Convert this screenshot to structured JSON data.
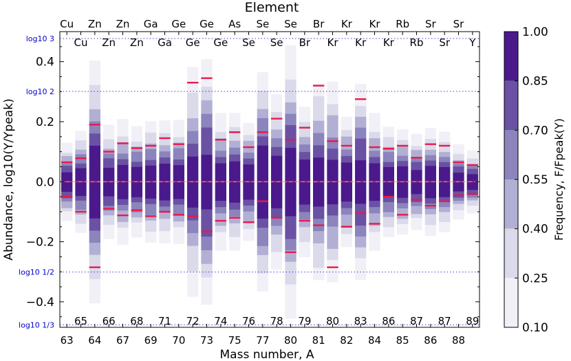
{
  "chart_data": {
    "type": "heatmap",
    "title": "Element",
    "xlabel": "Mass number, A",
    "ylabel": "Abundance, log10(Y/Ypeak)",
    "ylim": [
      -0.485,
      0.5
    ],
    "y_ticks": [
      0.4,
      0.2,
      0.0,
      -0.2,
      -0.4
    ],
    "y_tick_labels": [
      "0.4",
      "0.2",
      "0.0",
      "−0.2",
      "−0.4"
    ],
    "reference_lines": [
      {
        "label": "log10 3",
        "value": 0.477
      },
      {
        "label": "log10 2",
        "value": 0.301
      },
      {
        "label": "log10 1/2",
        "value": -0.301
      },
      {
        "label": "log10 1/3",
        "value": -0.477
      }
    ],
    "columns": [
      {
        "mass": "63",
        "element": "Cu",
        "row": "lower",
        "hi": 0.065,
        "lo": -0.05,
        "spread": 0.065
      },
      {
        "mass": "65",
        "element": "Cu",
        "row": "upper",
        "hi": 0.078,
        "lo": -0.1,
        "spread": 0.085
      },
      {
        "mass": "64",
        "element": "Zn",
        "row": "lower",
        "hi": 0.19,
        "lo": -0.285,
        "spread": 0.2
      },
      {
        "mass": "66",
        "element": "Zn",
        "row": "upper",
        "hi": 0.1,
        "lo": -0.09,
        "spread": 0.09
      },
      {
        "mass": "67",
        "element": "Zn",
        "row": "lower",
        "hi": 0.128,
        "lo": -0.112,
        "spread": 0.1
      },
      {
        "mass": "68",
        "element": "Zn",
        "row": "upper",
        "hi": 0.112,
        "lo": -0.095,
        "spread": 0.09
      },
      {
        "mass": "69",
        "element": "Ga",
        "row": "lower",
        "hi": 0.12,
        "lo": -0.115,
        "spread": 0.1
      },
      {
        "mass": "71",
        "element": "Ga",
        "row": "upper",
        "hi": 0.145,
        "lo": -0.1,
        "spread": 0.1
      },
      {
        "mass": "70",
        "element": "Ge",
        "row": "lower",
        "hi": 0.125,
        "lo": -0.11,
        "spread": 0.1
      },
      {
        "mass": "72",
        "element": "Ge",
        "row": "upper",
        "hi": 0.33,
        "lo": -0.115,
        "spread": 0.18
      },
      {
        "mass": "73",
        "element": "Ge",
        "row": "lower",
        "hi": 0.345,
        "lo": -0.165,
        "spread": 0.2
      },
      {
        "mass": "74",
        "element": "Ge",
        "row": "upper",
        "hi": 0.14,
        "lo": -0.13,
        "spread": 0.11
      },
      {
        "mass": "75",
        "element": "As",
        "row": "lower",
        "hi": 0.165,
        "lo": -0.12,
        "spread": 0.11
      },
      {
        "mass": "76",
        "element": "Se",
        "row": "upper",
        "hi": 0.115,
        "lo": -0.135,
        "spread": 0.1
      },
      {
        "mass": "77",
        "element": "Se",
        "row": "lower",
        "hi": 0.165,
        "lo": -0.065,
        "spread": 0.2
      },
      {
        "mass": "78",
        "element": "Se",
        "row": "upper",
        "hi": 0.21,
        "lo": -0.12,
        "spread": 0.14
      },
      {
        "mass": "80",
        "element": "Se",
        "row": "lower",
        "hi": 0.14,
        "lo": -0.235,
        "spread": 0.22
      },
      {
        "mass": "79",
        "element": "Br",
        "row": "upper",
        "hi": 0.18,
        "lo": -0.13,
        "spread": 0.12
      },
      {
        "mass": "81",
        "element": "Br",
        "row": "lower",
        "hi": 0.32,
        "lo": -0.145,
        "spread": 0.17
      },
      {
        "mass": "80",
        "element": "Kr",
        "row": "upper",
        "hi": 0.135,
        "lo": -0.285,
        "spread": 0.16
      },
      {
        "mass": "82",
        "element": "Kr",
        "row": "lower",
        "hi": 0.12,
        "lo": -0.15,
        "spread": 0.11
      },
      {
        "mass": "83",
        "element": "Kr",
        "row": "upper",
        "hi": 0.275,
        "lo": -0.105,
        "spread": 0.16
      },
      {
        "mass": "84",
        "element": "Kr",
        "row": "lower",
        "hi": 0.115,
        "lo": -0.14,
        "spread": 0.11
      },
      {
        "mass": "86",
        "element": "Kr",
        "row": "upper",
        "hi": 0.11,
        "lo": -0.05,
        "spread": 0.09
      },
      {
        "mass": "85",
        "element": "Rb",
        "row": "lower",
        "hi": 0.12,
        "lo": -0.11,
        "spread": 0.09
      },
      {
        "mass": "87",
        "element": "Rb",
        "row": "upper",
        "hi": 0.08,
        "lo": -0.06,
        "spread": 0.08
      },
      {
        "mass": "86",
        "element": "Sr",
        "row": "lower",
        "hi": 0.125,
        "lo": -0.08,
        "spread": 0.09
      },
      {
        "mass": "87",
        "element": "Sr",
        "row": "upper",
        "hi": 0.12,
        "lo": -0.065,
        "spread": 0.08
      },
      {
        "mass": "88",
        "element": "Sr",
        "row": "lower",
        "hi": 0.065,
        "lo": -0.045,
        "spread": 0.06
      },
      {
        "mass": "89",
        "element": "Y",
        "row": "upper",
        "hi": 0.055,
        "lo": -0.04,
        "spread": 0.05
      }
    ],
    "colorbar": {
      "label": "Frequency, F/Fpeak(Y)",
      "levels": [
        1.0,
        0.85,
        0.7,
        0.55,
        0.4,
        0.25,
        0.1
      ],
      "level_labels": [
        "1.00",
        "0.85",
        "0.70",
        "0.55",
        "0.40",
        "0.25",
        "0.10"
      ],
      "colors": [
        "#4a1a8c",
        "#6a51a3",
        "#8b84bd",
        "#b2afd4",
        "#dadaeb",
        "#f2f0f7"
      ]
    },
    "marker_color": "#e8194a",
    "reference_line_color": "#3b3bd6",
    "label_color": "#0000cc"
  }
}
